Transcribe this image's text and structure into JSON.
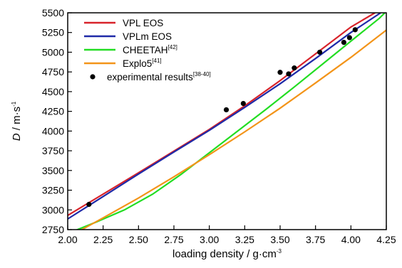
{
  "chart_data": {
    "type": "line",
    "xlabel": "loading density / g·cm",
    "xlabel_sup": "-3",
    "ylabel_main": "D",
    "ylabel_unit": " / m·s",
    "ylabel_sup": "-1",
    "xlim": [
      2.0,
      4.25
    ],
    "ylim": [
      2750,
      5500
    ],
    "xticks": [
      "2.00",
      "2.25",
      "2.50",
      "2.75",
      "3.00",
      "3.25",
      "3.50",
      "3.75",
      "4.00",
      "4.25"
    ],
    "yticks": [
      "2750",
      "3000",
      "3250",
      "3500",
      "3750",
      "4000",
      "4250",
      "4500",
      "4750",
      "5000",
      "5250",
      "5500"
    ],
    "legend_position": "top-left",
    "series": [
      {
        "name": "VPL EOS",
        "color": "#d8232a",
        "x": [
          2.0,
          2.25,
          2.5,
          2.75,
          3.0,
          3.25,
          3.5,
          3.75,
          4.0,
          4.17
        ],
        "y": [
          2930,
          3200,
          3470,
          3745,
          4020,
          4320,
          4640,
          4980,
          5320,
          5500
        ]
      },
      {
        "name": "VPLm EOS",
        "color": "#1f2aa8",
        "x": [
          2.0,
          2.25,
          2.5,
          2.75,
          3.0,
          3.25,
          3.5,
          3.75,
          4.0,
          4.21
        ],
        "y": [
          2885,
          3170,
          3455,
          3735,
          4010,
          4300,
          4600,
          4920,
          5250,
          5500
        ]
      },
      {
        "name": "CHEETAH",
        "sup": "[42]",
        "color": "#22dd22",
        "x": [
          2.0,
          2.2,
          2.4,
          2.6,
          2.8,
          3.0,
          3.2,
          3.4,
          3.6,
          3.8,
          4.0,
          4.2,
          4.24
        ],
        "y": [
          2700,
          2845,
          3000,
          3200,
          3450,
          3725,
          4000,
          4275,
          4560,
          4850,
          5140,
          5430,
          5500
        ]
      },
      {
        "name": "Explo5",
        "sup": "[41]",
        "color": "#f39419",
        "x": [
          2.0,
          2.25,
          2.5,
          2.75,
          3.0,
          3.25,
          3.5,
          3.75,
          4.0,
          4.25
        ],
        "y": [
          2650,
          2900,
          3150,
          3420,
          3700,
          3990,
          4290,
          4610,
          4935,
          5280
        ]
      }
    ],
    "points": {
      "name": "experimental results",
      "sup": "[38-40]",
      "color": "#000000",
      "x": [
        2.15,
        3.12,
        3.24,
        3.5,
        3.56,
        3.6,
        3.78,
        3.95,
        3.99,
        4.03
      ],
      "y": [
        3070,
        4270,
        4350,
        4745,
        4725,
        4800,
        5000,
        5125,
        5185,
        5285
      ]
    }
  }
}
